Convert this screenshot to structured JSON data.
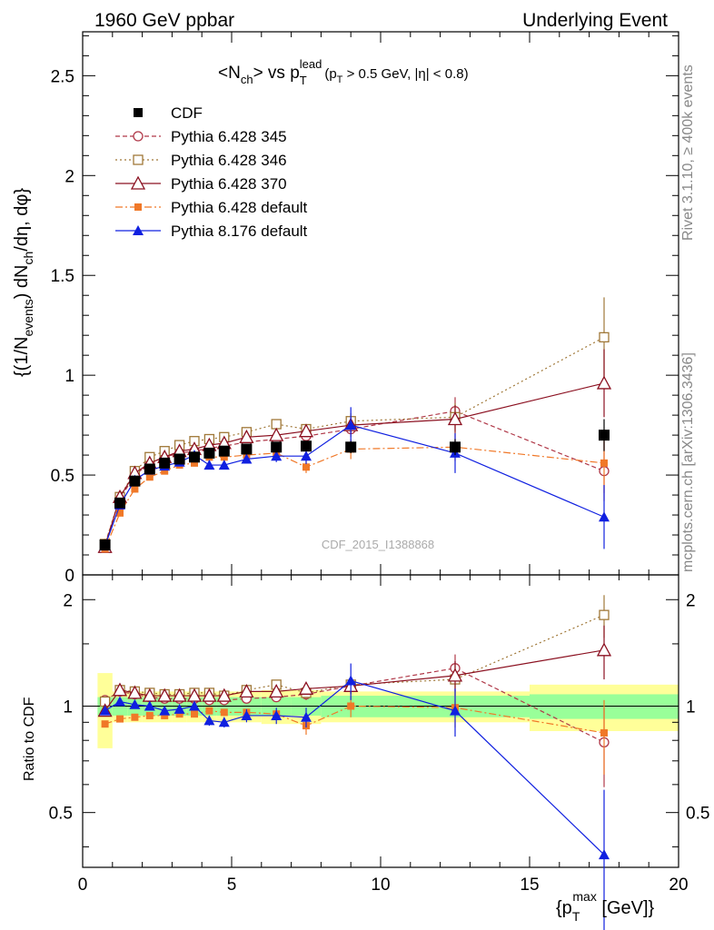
{
  "header": {
    "left": "1960 GeV ppbar",
    "right": "Underlying Event"
  },
  "side_text": {
    "rivet": "Rivet 3.1.10, ≥ 400k events",
    "mcplots": "mcplots.cern.ch [arXiv:1306.3436]"
  },
  "watermark": "CDF_2015_I1388868",
  "chart_data": [
    {
      "type": "line",
      "title": "<N_ch> vs p_T^lead (p_T > 0.5 GeV, |η| < 0.8)",
      "title_parts": {
        "lt": "<N",
        "ch": "ch",
        "mid": "> vs p",
        "T": "T",
        "lead": "lead",
        "cut1": "(p",
        "cutT": "T",
        "cut2": " > 0.5 GeV, |η| < 0.8)"
      },
      "ylabel": "{(1/N_events) dN_ch/dη, dφ}",
      "ylabel_parts": {
        "a": "{(1/N",
        "events": "events",
        "b": ") dN",
        "ch": "ch",
        "c": "/dη, dφ}"
      },
      "xlim": [
        0,
        20
      ],
      "ylim": [
        0,
        2.72
      ],
      "yticks": [
        "0.5",
        "1",
        "1.5",
        "2",
        "2.5"
      ],
      "series": [
        {
          "name": "CDF",
          "color": "#000000",
          "marker": "square-filled",
          "dash": "none",
          "x": [
            0.75,
            1.25,
            1.75,
            2.25,
            2.75,
            3.25,
            3.75,
            4.25,
            4.75,
            5.5,
            6.5,
            7.5,
            9.0,
            12.5,
            17.5
          ],
          "y": [
            0.15,
            0.36,
            0.47,
            0.53,
            0.56,
            0.58,
            0.59,
            0.61,
            0.62,
            0.63,
            0.64,
            0.645,
            0.64,
            0.64,
            0.7
          ],
          "err": [
            0.01,
            0.02,
            0.02,
            0.02,
            0.02,
            0.02,
            0.02,
            0.02,
            0.02,
            0.02,
            0.02,
            0.02,
            0.03,
            0.04,
            0.08
          ]
        },
        {
          "name": "Pythia 6.428 345",
          "color": "#b03848",
          "marker": "circle-open",
          "dash": "5,3",
          "x": [
            0.75,
            1.25,
            1.75,
            2.25,
            2.75,
            3.25,
            3.75,
            4.25,
            4.75,
            5.5,
            6.5,
            7.5,
            9.0,
            12.5,
            17.5
          ],
          "y": [
            0.155,
            0.38,
            0.5,
            0.56,
            0.59,
            0.61,
            0.62,
            0.635,
            0.645,
            0.665,
            0.68,
            0.695,
            0.73,
            0.82,
            0.52
          ],
          "err": [
            0.005,
            0.01,
            0.01,
            0.01,
            0.01,
            0.01,
            0.01,
            0.01,
            0.01,
            0.015,
            0.02,
            0.02,
            0.04,
            0.07,
            0.15
          ]
        },
        {
          "name": "Pythia 6.428 346",
          "color": "#a07838",
          "marker": "square-open",
          "dash": "2,3",
          "x": [
            0.75,
            1.25,
            1.75,
            2.25,
            2.75,
            3.25,
            3.75,
            4.25,
            4.75,
            5.5,
            6.5,
            7.5,
            9.0,
            12.5,
            17.5
          ],
          "y": [
            0.155,
            0.39,
            0.52,
            0.59,
            0.62,
            0.65,
            0.67,
            0.68,
            0.69,
            0.715,
            0.755,
            0.73,
            0.77,
            0.79,
            1.19
          ],
          "err": [
            0.005,
            0.01,
            0.01,
            0.01,
            0.01,
            0.01,
            0.01,
            0.01,
            0.01,
            0.015,
            0.02,
            0.02,
            0.04,
            0.07,
            0.2
          ]
        },
        {
          "name": "Pythia 6.428 370",
          "color": "#8b1020",
          "marker": "triangle-open",
          "dash": "none",
          "x": [
            0.75,
            1.25,
            1.75,
            2.25,
            2.75,
            3.25,
            3.75,
            4.25,
            4.75,
            5.5,
            6.5,
            7.5,
            9.0,
            12.5,
            17.5
          ],
          "y": [
            0.14,
            0.39,
            0.51,
            0.56,
            0.59,
            0.62,
            0.63,
            0.65,
            0.66,
            0.69,
            0.7,
            0.72,
            0.75,
            0.78,
            0.96
          ],
          "err": [
            0.005,
            0.01,
            0.01,
            0.01,
            0.01,
            0.01,
            0.01,
            0.01,
            0.01,
            0.015,
            0.02,
            0.02,
            0.04,
            0.07,
            0.17
          ]
        },
        {
          "name": "Pythia 6.428 default",
          "color": "#f07828",
          "marker": "square-filled-small",
          "dash": "8,3,2,3",
          "x": [
            0.75,
            1.25,
            1.75,
            2.25,
            2.75,
            3.25,
            3.75,
            4.25,
            4.75,
            5.5,
            6.5,
            7.5,
            9.0,
            12.5,
            17.5
          ],
          "y": [
            0.13,
            0.31,
            0.43,
            0.49,
            0.52,
            0.55,
            0.56,
            0.59,
            0.59,
            0.6,
            0.61,
            0.54,
            0.63,
            0.64,
            0.56
          ],
          "err": [
            0.005,
            0.01,
            0.01,
            0.01,
            0.01,
            0.01,
            0.01,
            0.01,
            0.01,
            0.015,
            0.02,
            0.03,
            0.05,
            0.07,
            0.15
          ]
        },
        {
          "name": "Pythia 8.176 default",
          "color": "#1020e0",
          "marker": "triangle-filled",
          "dash": "none",
          "x": [
            0.75,
            1.25,
            1.75,
            2.25,
            2.75,
            3.25,
            3.75,
            4.25,
            4.75,
            5.5,
            6.5,
            7.5,
            9.0,
            12.5,
            17.5
          ],
          "y": [
            0.145,
            0.35,
            0.475,
            0.525,
            0.545,
            0.565,
            0.6,
            0.55,
            0.55,
            0.58,
            0.595,
            0.595,
            0.75,
            0.61,
            0.29
          ],
          "err": [
            0.005,
            0.01,
            0.01,
            0.01,
            0.01,
            0.01,
            0.01,
            0.02,
            0.02,
            0.02,
            0.03,
            0.04,
            0.09,
            0.1,
            0.16
          ]
        }
      ]
    },
    {
      "type": "line",
      "title": "",
      "ylabel": "Ratio to CDF",
      "xlabel": "{p_T^max [GeV]}",
      "xlabel_parts": {
        "a": "{p",
        "T": "T",
        "max": "max",
        "b": " [GeV]}"
      },
      "xlim": [
        0,
        20
      ],
      "ylim": [
        0.35,
        2.35
      ],
      "xticks": [
        "0",
        "5",
        "10",
        "15",
        "20"
      ],
      "yticks": [
        "0.5",
        "1",
        "2"
      ],
      "bins": [
        0.5,
        1.0,
        1.5,
        2.0,
        2.5,
        3.0,
        3.5,
        4.0,
        4.5,
        5.0,
        6.0,
        7.0,
        8.0,
        10.0,
        15.0,
        20.0
      ],
      "band_inner": [
        0.06,
        0.06,
        0.06,
        0.06,
        0.06,
        0.06,
        0.06,
        0.06,
        0.06,
        0.06,
        0.06,
        0.06,
        0.07,
        0.07,
        0.08
      ],
      "band_outer": [
        0.24,
        0.1,
        0.1,
        0.1,
        0.1,
        0.1,
        0.1,
        0.1,
        0.1,
        0.1,
        0.11,
        0.11,
        0.1,
        0.1,
        0.15
      ],
      "series": [
        {
          "name": "Pythia 6.428 345",
          "color": "#b03848",
          "marker": "circle-open",
          "dash": "5,3",
          "x": [
            0.75,
            1.25,
            1.75,
            2.25,
            2.75,
            3.25,
            3.75,
            4.25,
            4.75,
            5.5,
            6.5,
            7.5,
            9.0,
            12.5,
            17.5
          ],
          "y": [
            1.04,
            1.1,
            1.08,
            1.06,
            1.05,
            1.05,
            1.05,
            1.04,
            1.04,
            1.05,
            1.06,
            1.08,
            1.14,
            1.28,
            0.79
          ],
          "err": [
            0.01,
            0.02,
            0.02,
            0.02,
            0.02,
            0.02,
            0.02,
            0.02,
            0.02,
            0.02,
            0.03,
            0.04,
            0.06,
            0.12,
            0.2
          ]
        },
        {
          "name": "Pythia 6.428 346",
          "color": "#a07838",
          "marker": "square-open",
          "dash": "2,3",
          "x": [
            0.75,
            1.25,
            1.75,
            2.25,
            2.75,
            3.25,
            3.75,
            4.25,
            4.75,
            5.5,
            6.5,
            7.5,
            9.0,
            12.5,
            17.5
          ],
          "y": [
            1.03,
            1.11,
            1.1,
            1.09,
            1.08,
            1.08,
            1.09,
            1.09,
            1.07,
            1.11,
            1.15,
            1.09,
            1.15,
            1.19,
            1.81
          ],
          "err": [
            0.01,
            0.02,
            0.02,
            0.02,
            0.02,
            0.02,
            0.02,
            0.02,
            0.02,
            0.02,
            0.03,
            0.04,
            0.06,
            0.12,
            0.25
          ]
        },
        {
          "name": "Pythia 6.428 370",
          "color": "#8b1020",
          "marker": "triangle-open",
          "dash": "none",
          "x": [
            0.75,
            1.25,
            1.75,
            2.25,
            2.75,
            3.25,
            3.75,
            4.25,
            4.75,
            5.5,
            6.5,
            7.5,
            9.0,
            12.5,
            17.5
          ],
          "y": [
            0.97,
            1.11,
            1.09,
            1.07,
            1.07,
            1.07,
            1.07,
            1.07,
            1.07,
            1.1,
            1.1,
            1.12,
            1.14,
            1.22,
            1.44
          ],
          "err": [
            0.01,
            0.02,
            0.02,
            0.02,
            0.02,
            0.02,
            0.02,
            0.02,
            0.02,
            0.02,
            0.03,
            0.04,
            0.06,
            0.12,
            0.25
          ]
        },
        {
          "name": "Pythia 6.428 default",
          "color": "#f07828",
          "marker": "square-filled-small",
          "dash": "8,3,2,3",
          "x": [
            0.75,
            1.25,
            1.75,
            2.25,
            2.75,
            3.25,
            3.75,
            4.25,
            4.75,
            5.5,
            6.5,
            7.5,
            9.0,
            12.5,
            17.5
          ],
          "y": [
            0.89,
            0.92,
            0.93,
            0.94,
            0.94,
            0.95,
            0.95,
            0.97,
            0.96,
            0.96,
            0.95,
            0.88,
            1.0,
            0.99,
            0.84
          ],
          "err": [
            0.01,
            0.02,
            0.02,
            0.02,
            0.02,
            0.02,
            0.02,
            0.02,
            0.02,
            0.02,
            0.03,
            0.05,
            0.07,
            0.12,
            0.2
          ]
        },
        {
          "name": "Pythia 8.176 default",
          "color": "#1020e0",
          "marker": "triangle-filled",
          "dash": "none",
          "x": [
            0.75,
            1.25,
            1.75,
            2.25,
            2.75,
            3.25,
            3.75,
            4.25,
            4.75,
            5.5,
            6.5,
            7.5,
            9.0,
            12.5,
            17.5
          ],
          "y": [
            0.97,
            1.03,
            1.01,
            1.0,
            0.97,
            0.98,
            1.0,
            0.91,
            0.9,
            0.94,
            0.94,
            0.93,
            1.18,
            0.97,
            0.38
          ],
          "err": [
            0.01,
            0.02,
            0.02,
            0.02,
            0.02,
            0.02,
            0.02,
            0.03,
            0.03,
            0.04,
            0.05,
            0.06,
            0.14,
            0.15,
            0.2
          ]
        }
      ]
    }
  ]
}
